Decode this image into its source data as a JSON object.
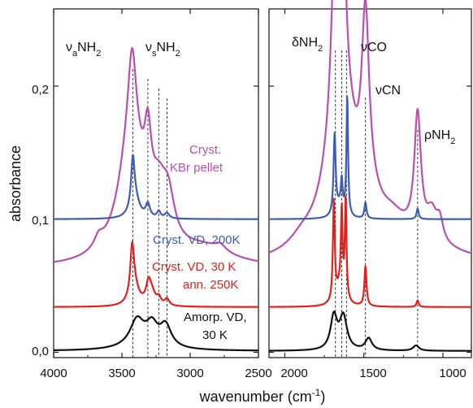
{
  "chart_data": {
    "type": "line",
    "ylabel": "absorbance",
    "xlabel": "wavenumber (cm",
    "xlabel_sup": "-1",
    "xlabel_end": ")",
    "y_ticks": [
      "0,0",
      "0,1",
      "0,2"
    ],
    "y_tick_values": [
      0.0,
      0.1,
      0.2
    ],
    "ylim": [
      -0.004,
      0.258
    ],
    "panels": [
      {
        "xlim": [
          4000,
          2500
        ],
        "x_reversed": true,
        "x_ticks": [
          "4000",
          "3500",
          "3000",
          "2500"
        ],
        "x_tick_values": [
          4000,
          3500,
          3000,
          2500
        ],
        "annotations": [
          "ν",
          "a",
          "NH",
          "2",
          "ν",
          "s",
          "NH",
          "2"
        ],
        "dashed_lines": [
          3420,
          3310,
          3230,
          3170
        ]
      },
      {
        "xlim": [
          2100,
          820
        ],
        "x_reversed": true,
        "x_ticks": [
          "2000",
          "1500",
          "1000"
        ],
        "x_tick_values": [
          2000,
          1500,
          1000
        ],
        "annotations": [
          "δNH",
          "2",
          "νCO",
          "νCN",
          "ρNH",
          "2"
        ],
        "dashed_lines": [
          1680,
          1640,
          1610,
          1490,
          1160
        ]
      }
    ],
    "series": [
      {
        "name": "Cryst. KBr pellet",
        "label_lines": [
          "Cryst.",
          "KBr pellet"
        ],
        "color": "#bb4fb0",
        "offset": 0.063,
        "panels": [
          {
            "bands": [
              [
                3670,
                0.008,
                40
              ],
              [
                3430,
                0.095,
                110
              ],
              [
                3425,
                0.06,
                35
              ],
              [
                3310,
                0.05,
                30
              ],
              [
                3230,
                0.035,
                70
              ],
              [
                3160,
                0.03,
                55
              ],
              [
                2900,
                0.012,
                250
              ],
              [
                2780,
                0.005,
                50
              ]
            ]
          },
          {
            "bands": [
              [
                1890,
                0.008,
                100
              ],
              [
                1680,
                0.16,
                30
              ],
              [
                1630,
                0.12,
                22
              ],
              [
                1690,
                0.05,
                110
              ],
              [
                1600,
                0.05,
                70
              ],
              [
                1490,
                0.13,
                28
              ],
              [
                1480,
                0.02,
                90
              ],
              [
                1320,
                0.01,
                90
              ],
              [
                1160,
                0.09,
                25
              ],
              [
                1070,
                0.02,
                40
              ],
              [
                1020,
                0.015,
                25
              ],
              [
                1320,
                0.02,
                400
              ]
            ]
          }
        ]
      },
      {
        "name": "Cryst. VD, 200K",
        "label_lines": [
          "Cryst. VD, 200K"
        ],
        "color": "#3f5db0",
        "offset": 0.1,
        "panels": [
          {
            "bands": [
              [
                3420,
                0.035,
                15
              ],
              [
                3405,
                0.015,
                40
              ],
              [
                3310,
                0.01,
                18
              ],
              [
                3230,
                0.005,
                15
              ],
              [
                3170,
                0.004,
                20
              ]
            ]
          },
          {
            "bands": [
              [
                1685,
                0.06,
                8
              ],
              [
                1640,
                0.02,
                6
              ],
              [
                1605,
                0.09,
                6
              ],
              [
                1650,
                0.01,
                30
              ],
              [
                1490,
                0.012,
                8
              ],
              [
                1160,
                0.008,
                8
              ]
            ]
          }
        ]
      },
      {
        "name": "Cryst. VD, 30 K ann. 250K",
        "label_lines": [
          "Cryst. VD, 30 K",
          "ann. 250K"
        ],
        "color": "#e3201e",
        "offset": 0.034,
        "panels": [
          {
            "bands": [
              [
                3425,
                0.035,
                16
              ],
              [
                3410,
                0.015,
                40
              ],
              [
                3305,
                0.015,
                22
              ],
              [
                3280,
                0.008,
                30
              ],
              [
                3230,
                0.005,
                18
              ],
              [
                3170,
                0.005,
                20
              ]
            ]
          },
          {
            "bands": [
              [
                1690,
                0.075,
                7
              ],
              [
                1640,
                0.06,
                6
              ],
              [
                1615,
                0.075,
                6
              ],
              [
                1650,
                0.015,
                30
              ],
              [
                1490,
                0.03,
                8
              ],
              [
                1160,
                0.005,
                8
              ]
            ]
          }
        ]
      },
      {
        "name": "Amorp. VD, 30 K",
        "label_lines": [
          "Amorp. VD,",
          "30 K"
        ],
        "color": "#111111",
        "offset": 0.001,
        "panels": [
          {
            "bands": [
              [
                3390,
                0.018,
                60
              ],
              [
                3280,
                0.014,
                50
              ],
              [
                3180,
                0.016,
                50
              ],
              [
                3350,
                0.005,
                150
              ]
            ]
          },
          {
            "bands": [
              [
                1690,
                0.025,
                25
              ],
              [
                1630,
                0.025,
                28
              ],
              [
                1470,
                0.009,
                25
              ],
              [
                1170,
                0.004,
                22
              ]
            ]
          }
        ]
      }
    ]
  }
}
